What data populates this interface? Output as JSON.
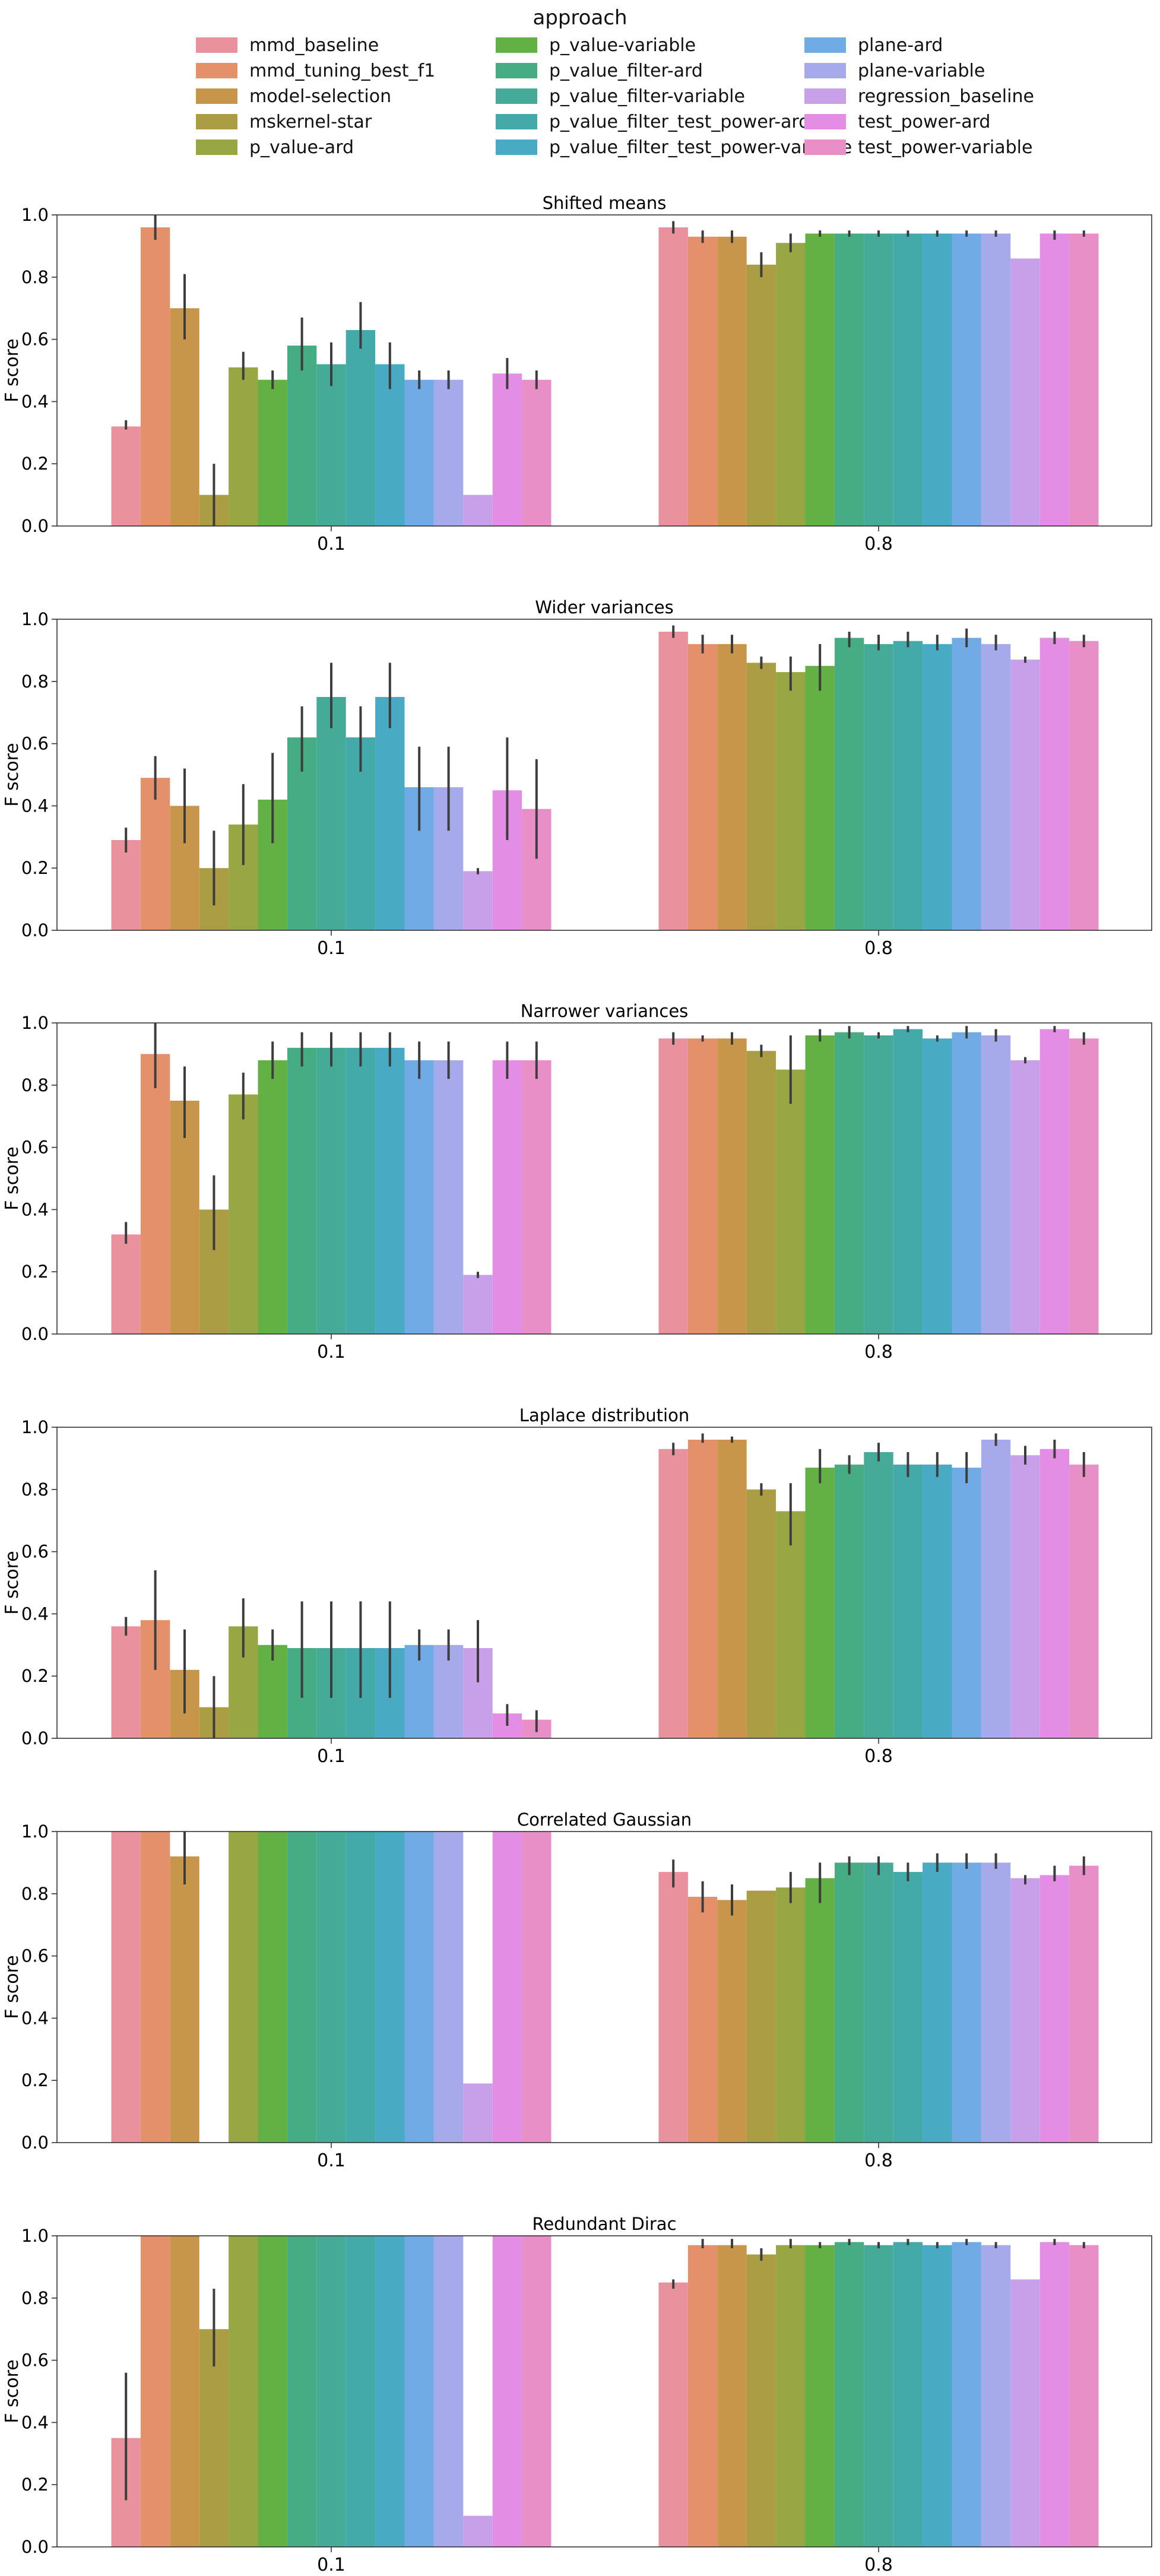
{
  "legend": {
    "title": "approach",
    "entries": [
      {
        "label": "mmd_baseline",
        "color": "#e9919c"
      },
      {
        "label": "mmd_tuning_best_f1",
        "color": "#e3906b"
      },
      {
        "label": "model-selection",
        "color": "#c8964a"
      },
      {
        "label": "mskernel-star",
        "color": "#aa9d43"
      },
      {
        "label": "p_value-ard",
        "color": "#98a743"
      },
      {
        "label": "p_value-variable",
        "color": "#63b045"
      },
      {
        "label": "p_value_filter-ard",
        "color": "#45ac83"
      },
      {
        "label": "p_value_filter-variable",
        "color": "#46aa98"
      },
      {
        "label": "p_value_filter_test_power-ard",
        "color": "#44aaa9"
      },
      {
        "label": "p_value_filter_test_power-variable",
        "color": "#49aac4"
      },
      {
        "label": "plane-ard",
        "color": "#70abe6"
      },
      {
        "label": "plane-variable",
        "color": "#a6a9ea"
      },
      {
        "label": "regression_baseline",
        "color": "#c8a0ea"
      },
      {
        "label": "test_power-ard",
        "color": "#e48de4"
      },
      {
        "label": "test_power-variable",
        "color": "#e88fc8"
      }
    ]
  },
  "chart_data": [
    {
      "type": "bar",
      "title": "Shifted means",
      "ylabel": "F score",
      "xlabel": "",
      "ylim": [
        0,
        1.0
      ],
      "yticks": [
        "0.0",
        "0.2",
        "0.4",
        "0.6",
        "0.8",
        "1.0"
      ],
      "categories": [
        "0.1",
        "0.8"
      ],
      "series_values": [
        [
          0.32,
          0.96
        ],
        [
          0.96,
          0.93
        ],
        [
          0.7,
          0.93
        ],
        [
          0.1,
          0.84
        ],
        [
          0.51,
          0.91
        ],
        [
          0.47,
          0.94
        ],
        [
          0.58,
          0.94
        ],
        [
          0.52,
          0.94
        ],
        [
          0.63,
          0.94
        ],
        [
          0.52,
          0.94
        ],
        [
          0.47,
          0.94
        ],
        [
          0.47,
          0.94
        ],
        [
          0.1,
          0.86
        ],
        [
          0.49,
          0.94
        ],
        [
          0.47,
          0.94
        ]
      ],
      "error_bars": [
        [
          [
            0.31,
            0.34
          ],
          [
            0.94,
            0.98
          ]
        ],
        [
          [
            0.92,
            1.0
          ],
          [
            0.91,
            0.95
          ]
        ],
        [
          [
            0.6,
            0.81
          ],
          [
            0.91,
            0.95
          ]
        ],
        [
          [
            0.0,
            0.2
          ],
          [
            0.8,
            0.88
          ]
        ],
        [
          [
            0.47,
            0.56
          ],
          [
            0.88,
            0.94
          ]
        ],
        [
          [
            0.44,
            0.5
          ],
          [
            0.93,
            0.95
          ]
        ],
        [
          [
            0.5,
            0.67
          ],
          [
            0.93,
            0.95
          ]
        ],
        [
          [
            0.45,
            0.59
          ],
          [
            0.93,
            0.95
          ]
        ],
        [
          [
            0.57,
            0.72
          ],
          [
            0.93,
            0.95
          ]
        ],
        [
          [
            0.44,
            0.59
          ],
          [
            0.93,
            0.95
          ]
        ],
        [
          [
            0.44,
            0.5
          ],
          [
            0.93,
            0.95
          ]
        ],
        [
          [
            0.44,
            0.5
          ],
          [
            0.93,
            0.95
          ]
        ],
        null,
        [
          [
            0.44,
            0.54
          ],
          [
            0.92,
            0.95
          ]
        ],
        [
          [
            0.44,
            0.5
          ],
          [
            0.93,
            0.95
          ]
        ]
      ]
    },
    {
      "type": "bar",
      "title": "Wider variances",
      "ylabel": "F score",
      "xlabel": "",
      "ylim": [
        0,
        1.0
      ],
      "yticks": [
        "0.0",
        "0.2",
        "0.4",
        "0.6",
        "0.8",
        "1.0"
      ],
      "categories": [
        "0.1",
        "0.8"
      ],
      "series_values": [
        [
          0.29,
          0.96
        ],
        [
          0.49,
          0.92
        ],
        [
          0.4,
          0.92
        ],
        [
          0.2,
          0.86
        ],
        [
          0.34,
          0.83
        ],
        [
          0.42,
          0.85
        ],
        [
          0.62,
          0.94
        ],
        [
          0.75,
          0.92
        ],
        [
          0.62,
          0.93
        ],
        [
          0.75,
          0.92
        ],
        [
          0.46,
          0.94
        ],
        [
          0.46,
          0.92
        ],
        [
          0.19,
          0.87
        ],
        [
          0.45,
          0.94
        ],
        [
          0.39,
          0.93
        ]
      ],
      "error_bars": [
        [
          [
            0.25,
            0.33
          ],
          [
            0.94,
            0.98
          ]
        ],
        [
          [
            0.42,
            0.56
          ],
          [
            0.89,
            0.95
          ]
        ],
        [
          [
            0.28,
            0.52
          ],
          [
            0.89,
            0.95
          ]
        ],
        [
          [
            0.08,
            0.32
          ],
          [
            0.84,
            0.88
          ]
        ],
        [
          [
            0.21,
            0.47
          ],
          [
            0.77,
            0.88
          ]
        ],
        [
          [
            0.28,
            0.57
          ],
          [
            0.77,
            0.92
          ]
        ],
        [
          [
            0.51,
            0.72
          ],
          [
            0.91,
            0.96
          ]
        ],
        [
          [
            0.65,
            0.86
          ],
          [
            0.9,
            0.95
          ]
        ],
        [
          [
            0.51,
            0.72
          ],
          [
            0.91,
            0.96
          ]
        ],
        [
          [
            0.65,
            0.86
          ],
          [
            0.9,
            0.95
          ]
        ],
        [
          [
            0.32,
            0.59
          ],
          [
            0.91,
            0.97
          ]
        ],
        [
          [
            0.32,
            0.59
          ],
          [
            0.9,
            0.95
          ]
        ],
        [
          [
            0.18,
            0.2
          ],
          [
            0.86,
            0.88
          ]
        ],
        [
          [
            0.29,
            0.62
          ],
          [
            0.92,
            0.96
          ]
        ],
        [
          [
            0.23,
            0.55
          ],
          [
            0.91,
            0.95
          ]
        ]
      ]
    },
    {
      "type": "bar",
      "title": "Narrower variances",
      "ylabel": "F score",
      "xlabel": "",
      "ylim": [
        0,
        1.0
      ],
      "yticks": [
        "0.0",
        "0.2",
        "0.4",
        "0.6",
        "0.8",
        "1.0"
      ],
      "categories": [
        "0.1",
        "0.8"
      ],
      "series_values": [
        [
          0.32,
          0.95
        ],
        [
          0.9,
          0.95
        ],
        [
          0.75,
          0.95
        ],
        [
          0.4,
          0.91
        ],
        [
          0.77,
          0.85
        ],
        [
          0.88,
          0.96
        ],
        [
          0.92,
          0.97
        ],
        [
          0.92,
          0.96
        ],
        [
          0.92,
          0.98
        ],
        [
          0.92,
          0.95
        ],
        [
          0.88,
          0.97
        ],
        [
          0.88,
          0.96
        ],
        [
          0.19,
          0.88
        ],
        [
          0.88,
          0.98
        ],
        [
          0.88,
          0.95
        ]
      ],
      "error_bars": [
        [
          [
            0.29,
            0.36
          ],
          [
            0.93,
            0.97
          ]
        ],
        [
          [
            0.79,
            1.0
          ],
          [
            0.94,
            0.96
          ]
        ],
        [
          [
            0.63,
            0.86
          ],
          [
            0.93,
            0.97
          ]
        ],
        [
          [
            0.27,
            0.51
          ],
          [
            0.89,
            0.93
          ]
        ],
        [
          [
            0.69,
            0.84
          ],
          [
            0.74,
            0.96
          ]
        ],
        [
          [
            0.82,
            0.94
          ],
          [
            0.94,
            0.98
          ]
        ],
        [
          [
            0.86,
            0.97
          ],
          [
            0.95,
            0.99
          ]
        ],
        [
          [
            0.86,
            0.97
          ],
          [
            0.95,
            0.97
          ]
        ],
        [
          [
            0.86,
            0.97
          ],
          [
            0.97,
            0.99
          ]
        ],
        [
          [
            0.86,
            0.97
          ],
          [
            0.94,
            0.96
          ]
        ],
        [
          [
            0.82,
            0.94
          ],
          [
            0.95,
            0.99
          ]
        ],
        [
          [
            0.82,
            0.94
          ],
          [
            0.94,
            0.98
          ]
        ],
        [
          [
            0.18,
            0.2
          ],
          [
            0.87,
            0.89
          ]
        ],
        [
          [
            0.82,
            0.94
          ],
          [
            0.97,
            0.99
          ]
        ],
        [
          [
            0.82,
            0.94
          ],
          [
            0.93,
            0.97
          ]
        ]
      ]
    },
    {
      "type": "bar",
      "title": "Laplace distribution",
      "ylabel": "F score",
      "xlabel": "",
      "ylim": [
        0,
        1.0
      ],
      "yticks": [
        "0.0",
        "0.2",
        "0.4",
        "0.6",
        "0.8",
        "1.0"
      ],
      "categories": [
        "0.1",
        "0.8"
      ],
      "series_values": [
        [
          0.36,
          0.93
        ],
        [
          0.38,
          0.96
        ],
        [
          0.22,
          0.96
        ],
        [
          0.1,
          0.8
        ],
        [
          0.36,
          0.73
        ],
        [
          0.3,
          0.87
        ],
        [
          0.29,
          0.88
        ],
        [
          0.29,
          0.92
        ],
        [
          0.29,
          0.88
        ],
        [
          0.29,
          0.88
        ],
        [
          0.3,
          0.87
        ],
        [
          0.3,
          0.96
        ],
        [
          0.29,
          0.91
        ],
        [
          0.08,
          0.93
        ],
        [
          0.06,
          0.88
        ]
      ],
      "error_bars": [
        [
          [
            0.33,
            0.39
          ],
          [
            0.91,
            0.95
          ]
        ],
        [
          [
            0.22,
            0.54
          ],
          [
            0.95,
            0.98
          ]
        ],
        [
          [
            0.08,
            0.35
          ],
          [
            0.95,
            0.97
          ]
        ],
        [
          [
            0.0,
            0.2
          ],
          [
            0.78,
            0.82
          ]
        ],
        [
          [
            0.26,
            0.45
          ],
          [
            0.62,
            0.82
          ]
        ],
        [
          [
            0.25,
            0.35
          ],
          [
            0.82,
            0.93
          ]
        ],
        [
          [
            0.13,
            0.44
          ],
          [
            0.85,
            0.91
          ]
        ],
        [
          [
            0.13,
            0.44
          ],
          [
            0.89,
            0.95
          ]
        ],
        [
          [
            0.13,
            0.44
          ],
          [
            0.84,
            0.92
          ]
        ],
        [
          [
            0.13,
            0.44
          ],
          [
            0.84,
            0.92
          ]
        ],
        [
          [
            0.25,
            0.35
          ],
          [
            0.82,
            0.92
          ]
        ],
        [
          [
            0.25,
            0.35
          ],
          [
            0.94,
            0.98
          ]
        ],
        [
          [
            0.18,
            0.38
          ],
          [
            0.88,
            0.94
          ]
        ],
        [
          [
            0.04,
            0.11
          ],
          [
            0.9,
            0.96
          ]
        ],
        [
          [
            0.02,
            0.09
          ],
          [
            0.84,
            0.92
          ]
        ]
      ]
    },
    {
      "type": "bar",
      "title": "Correlated Gaussian",
      "ylabel": "F score",
      "xlabel": "",
      "ylim": [
        0,
        1.0
      ],
      "yticks": [
        "0.0",
        "0.2",
        "0.4",
        "0.6",
        "0.8",
        "1.0"
      ],
      "categories": [
        "0.1",
        "0.8"
      ],
      "series_values": [
        [
          1.0,
          0.87
        ],
        [
          1.0,
          0.79
        ],
        [
          0.92,
          0.78
        ],
        [
          0.0,
          0.81
        ],
        [
          1.0,
          0.82
        ],
        [
          1.0,
          0.85
        ],
        [
          1.0,
          0.9
        ],
        [
          1.0,
          0.9
        ],
        [
          1.0,
          0.87
        ],
        [
          1.0,
          0.9
        ],
        [
          1.0,
          0.9
        ],
        [
          1.0,
          0.9
        ],
        [
          0.19,
          0.85
        ],
        [
          1.0,
          0.86
        ],
        [
          1.0,
          0.89
        ]
      ],
      "error_bars": [
        [
          null,
          [
            0.82,
            0.91
          ]
        ],
        [
          null,
          [
            0.74,
            0.84
          ]
        ],
        [
          [
            0.83,
            1.0
          ],
          [
            0.73,
            0.83
          ]
        ],
        null,
        [
          null,
          [
            0.77,
            0.87
          ]
        ],
        [
          null,
          [
            0.77,
            0.9
          ]
        ],
        [
          null,
          [
            0.86,
            0.92
          ]
        ],
        [
          null,
          [
            0.86,
            0.92
          ]
        ],
        [
          null,
          [
            0.84,
            0.9
          ]
        ],
        [
          null,
          [
            0.87,
            0.93
          ]
        ],
        [
          null,
          [
            0.88,
            0.93
          ]
        ],
        [
          null,
          [
            0.88,
            0.93
          ]
        ],
        [
          null,
          [
            0.83,
            0.86
          ]
        ],
        [
          null,
          [
            0.84,
            0.89
          ]
        ],
        [
          null,
          [
            0.86,
            0.92
          ]
        ]
      ]
    },
    {
      "type": "bar",
      "title": "Redundant Dirac",
      "ylabel": "F score",
      "xlabel": "",
      "ylim": [
        0,
        1.0
      ],
      "yticks": [
        "0.0",
        "0.2",
        "0.4",
        "0.6",
        "0.8",
        "1.0"
      ],
      "categories": [
        "0.1",
        "0.8"
      ],
      "series_values": [
        [
          0.35,
          0.85
        ],
        [
          1.0,
          0.97
        ],
        [
          1.0,
          0.97
        ],
        [
          0.7,
          0.94
        ],
        [
          1.0,
          0.97
        ],
        [
          1.0,
          0.97
        ],
        [
          1.0,
          0.98
        ],
        [
          1.0,
          0.97
        ],
        [
          1.0,
          0.98
        ],
        [
          1.0,
          0.97
        ],
        [
          1.0,
          0.98
        ],
        [
          1.0,
          0.97
        ],
        [
          0.1,
          0.86
        ],
        [
          1.0,
          0.98
        ],
        [
          1.0,
          0.97
        ]
      ],
      "error_bars": [
        [
          [
            0.15,
            0.56
          ],
          [
            0.83,
            0.86
          ]
        ],
        [
          null,
          [
            0.96,
            0.99
          ]
        ],
        [
          null,
          [
            0.96,
            0.99
          ]
        ],
        [
          [
            0.58,
            0.83
          ],
          [
            0.92,
            0.96
          ]
        ],
        [
          null,
          [
            0.96,
            0.99
          ]
        ],
        [
          null,
          [
            0.96,
            0.98
          ]
        ],
        [
          null,
          [
            0.97,
            0.99
          ]
        ],
        [
          null,
          [
            0.96,
            0.98
          ]
        ],
        [
          null,
          [
            0.97,
            0.99
          ]
        ],
        [
          null,
          [
            0.96,
            0.98
          ]
        ],
        [
          null,
          [
            0.97,
            0.99
          ]
        ],
        [
          null,
          [
            0.96,
            0.98
          ]
        ],
        null,
        [
          null,
          [
            0.97,
            0.99
          ]
        ],
        [
          null,
          [
            0.96,
            0.98
          ]
        ]
      ]
    }
  ]
}
